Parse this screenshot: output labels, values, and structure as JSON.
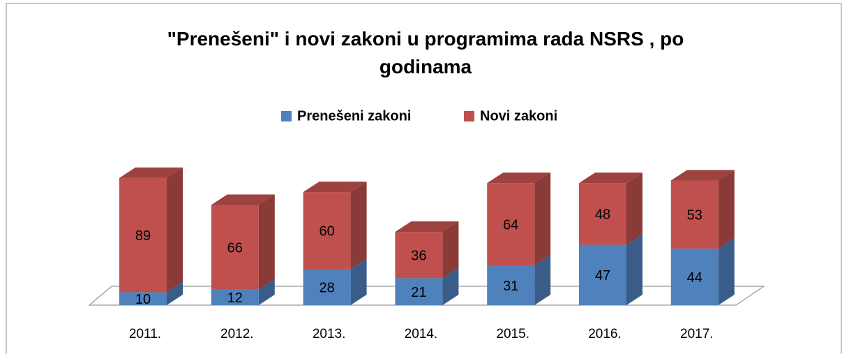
{
  "chart_data": {
    "type": "bar",
    "stacked": true,
    "title": "\"Prenešeni\" i novi zakoni u programima rada NSRS  , po godinama",
    "categories": [
      "2011.",
      "2012.",
      "2013.",
      "2014.",
      "2015.",
      "2016.",
      "2017."
    ],
    "series": [
      {
        "name": "Prenešeni zakoni",
        "color": "#4f81bd",
        "values": [
          10,
          12,
          28,
          21,
          31,
          47,
          44
        ]
      },
      {
        "name": "Novi zakoni",
        "color": "#c0504d",
        "values": [
          89,
          66,
          60,
          36,
          64,
          48,
          53
        ]
      }
    ]
  }
}
